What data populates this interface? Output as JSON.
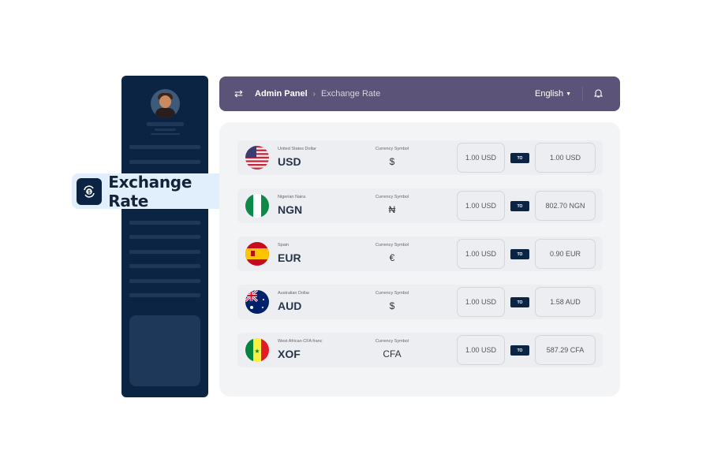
{
  "sidebar": {
    "active_item": "Exchange Rate",
    "active_icon": "dollar-exchange-icon"
  },
  "header": {
    "crumb_root": "Admin Panel",
    "crumb_current": "Exchange Rate",
    "language": "English",
    "bg_color": "#5c5478"
  },
  "colors": {
    "sidebar": "#0b2444",
    "accent_pill": "#e1effc"
  },
  "rows": [
    {
      "name": "United States Dollar",
      "code": "USD",
      "symbol_label": "Currency Symbol",
      "symbol": "$",
      "from": "1.00 USD",
      "to_label": "TO",
      "to": "1.00 USD",
      "flag": "us-flag"
    },
    {
      "name": "Nigerian Naira",
      "code": "NGN",
      "symbol_label": "Currency Symbol",
      "symbol": "₦",
      "from": "1.00 USD",
      "to_label": "TO",
      "to": "802.70 NGN",
      "flag": "ng-flag"
    },
    {
      "name": "Spain",
      "code": "EUR",
      "symbol_label": "Currency Symbol",
      "symbol": "€",
      "from": "1.00 USD",
      "to_label": "TO",
      "to": "0.90 EUR",
      "flag": "es-flag"
    },
    {
      "name": "Australian Dollar",
      "code": "AUD",
      "symbol_label": "Currency Symbol",
      "symbol": "$",
      "from": "1.00 USD",
      "to_label": "TO",
      "to": "1.58 AUD",
      "flag": "au-flag"
    },
    {
      "name": "West African CFA franc",
      "code": "XOF",
      "symbol_label": "Currency Symbol",
      "symbol": "CFA",
      "from": "1.00 USD",
      "to_label": "TO",
      "to": "587.29 CFA",
      "flag": "sn-flag"
    }
  ]
}
